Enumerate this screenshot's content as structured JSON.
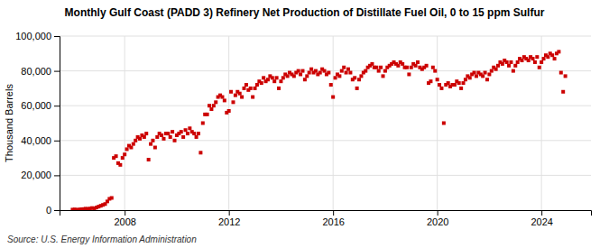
{
  "chart_data": {
    "type": "scatter",
    "title": "Monthly Gulf Coast (PADD 3) Refinery Net Production of Distillate Fuel Oil, 0 to 15 ppm Sulfur",
    "ylabel": "Thousand Barrels",
    "source": "Source: U.S. Energy Information Administration",
    "color": "#cc0000",
    "marker": "square",
    "grid": true,
    "xlim": [
      2005.5,
      2025.9
    ],
    "xticks": [
      2008,
      2012,
      2016,
      2020,
      2024
    ],
    "ylim": [
      0,
      100000
    ],
    "yticks": [
      0,
      {
        "value": 20000,
        "label": "20,000"
      },
      {
        "value": 40000,
        "label": "40,000"
      },
      {
        "value": 60000,
        "label": "60,000"
      },
      {
        "value": 80000,
        "label": "80,000"
      },
      {
        "value": 100000,
        "label": "100,000"
      }
    ],
    "x": [
      2006,
      2006.083,
      2006.167,
      2006.25,
      2006.333,
      2006.417,
      2006.5,
      2006.583,
      2006.667,
      2006.75,
      2006.833,
      2006.917,
      2007,
      2007.083,
      2007.167,
      2007.25,
      2007.333,
      2007.417,
      2007.5,
      2007.583,
      2007.667,
      2007.75,
      2007.833,
      2007.917,
      2008,
      2008.083,
      2008.167,
      2008.25,
      2008.333,
      2008.417,
      2008.5,
      2008.583,
      2008.667,
      2008.75,
      2008.833,
      2008.917,
      2009,
      2009.083,
      2009.167,
      2009.25,
      2009.333,
      2009.417,
      2009.5,
      2009.583,
      2009.667,
      2009.75,
      2009.833,
      2009.917,
      2010,
      2010.083,
      2010.167,
      2010.25,
      2010.333,
      2010.417,
      2010.5,
      2010.583,
      2010.667,
      2010.75,
      2010.833,
      2010.917,
      2011,
      2011.083,
      2011.167,
      2011.25,
      2011.333,
      2011.417,
      2011.5,
      2011.583,
      2011.667,
      2011.75,
      2011.833,
      2011.917,
      2012,
      2012.083,
      2012.167,
      2012.25,
      2012.333,
      2012.417,
      2012.5,
      2012.583,
      2012.667,
      2012.75,
      2012.833,
      2012.917,
      2013,
      2013.083,
      2013.167,
      2013.25,
      2013.333,
      2013.417,
      2013.5,
      2013.583,
      2013.667,
      2013.75,
      2013.833,
      2013.917,
      2014,
      2014.083,
      2014.167,
      2014.25,
      2014.333,
      2014.417,
      2014.5,
      2014.583,
      2014.667,
      2014.75,
      2014.833,
      2014.917,
      2015,
      2015.083,
      2015.167,
      2015.25,
      2015.333,
      2015.417,
      2015.5,
      2015.583,
      2015.667,
      2015.75,
      2015.833,
      2015.917,
      2016,
      2016.083,
      2016.167,
      2016.25,
      2016.333,
      2016.417,
      2016.5,
      2016.583,
      2016.667,
      2016.75,
      2016.833,
      2016.917,
      2017,
      2017.083,
      2017.167,
      2017.25,
      2017.333,
      2017.417,
      2017.5,
      2017.583,
      2017.667,
      2017.75,
      2017.833,
      2017.917,
      2018,
      2018.083,
      2018.167,
      2018.25,
      2018.333,
      2018.417,
      2018.5,
      2018.583,
      2018.667,
      2018.75,
      2018.833,
      2018.917,
      2019,
      2019.083,
      2019.167,
      2019.25,
      2019.333,
      2019.417,
      2019.5,
      2019.583,
      2019.667,
      2019.75,
      2019.833,
      2019.917,
      2020,
      2020.083,
      2020.167,
      2020.25,
      2020.333,
      2020.417,
      2020.5,
      2020.583,
      2020.667,
      2020.75,
      2020.833,
      2020.917,
      2021,
      2021.083,
      2021.167,
      2021.25,
      2021.333,
      2021.417,
      2021.5,
      2021.583,
      2021.667,
      2021.75,
      2021.833,
      2021.917,
      2022,
      2022.083,
      2022.167,
      2022.25,
      2022.333,
      2022.417,
      2022.5,
      2022.583,
      2022.667,
      2022.75,
      2022.833,
      2022.917,
      2023,
      2023.083,
      2023.167,
      2023.25,
      2023.333,
      2023.417,
      2023.5,
      2023.583,
      2023.667,
      2023.75,
      2023.833,
      2023.917,
      2024,
      2024.083,
      2024.167,
      2024.25,
      2024.333,
      2024.417,
      2024.5,
      2024.583,
      2024.667,
      2024.75,
      2024.833,
      2024.917
    ],
    "values": [
      300,
      400,
      200,
      350,
      500,
      600,
      800,
      700,
      900,
      1200,
      1000,
      1500,
      2000,
      2500,
      3000,
      3500,
      5000,
      6500,
      7000,
      30000,
      31000,
      27000,
      26000,
      30000,
      32000,
      35000,
      37000,
      36000,
      38000,
      40000,
      42000,
      41000,
      43000,
      42000,
      44000,
      29000,
      38000,
      40000,
      36000,
      42000,
      44000,
      43000,
      41000,
      44000,
      44000,
      42000,
      45000,
      40000,
      43000,
      44000,
      45000,
      42000,
      46000,
      44000,
      47000,
      45000,
      44000,
      42000,
      44000,
      33000,
      50000,
      55000,
      55000,
      60000,
      58000,
      60000,
      62000,
      65000,
      66000,
      65000,
      63000,
      56000,
      57000,
      68000,
      62000,
      66000,
      68000,
      67000,
      65000,
      70000,
      72000,
      69000,
      70000,
      65000,
      70000,
      72000,
      74000,
      73000,
      76000,
      74000,
      75000,
      77000,
      76000,
      74000,
      76000,
      70000,
      74000,
      76000,
      78000,
      77000,
      79000,
      78000,
      77000,
      79000,
      80000,
      78000,
      80000,
      75000,
      77000,
      79000,
      81000,
      79000,
      80000,
      78000,
      79000,
      81000,
      80000,
      78000,
      79000,
      72000,
      65000,
      76000,
      78000,
      77000,
      80000,
      82000,
      79000,
      81000,
      79000,
      75000,
      76000,
      70000,
      75000,
      77000,
      79000,
      80000,
      82000,
      83000,
      84000,
      82000,
      82000,
      80000,
      82000,
      77000,
      80000,
      82000,
      83000,
      84000,
      85000,
      84000,
      83000,
      85000,
      84000,
      82000,
      82000,
      78000,
      82000,
      84000,
      83000,
      85000,
      82000,
      81000,
      82000,
      83000,
      73000,
      74000,
      82000,
      80000,
      75000,
      72000,
      70000,
      50000,
      72000,
      73000,
      71000,
      72000,
      72000,
      74000,
      73000,
      70000,
      73000,
      75000,
      77000,
      76000,
      78000,
      79000,
      77000,
      79000,
      78000,
      77000,
      79000,
      75000,
      78000,
      80000,
      82000,
      81000,
      83000,
      85000,
      84000,
      86000,
      85000,
      83000,
      85000,
      80000,
      83000,
      85000,
      87000,
      86000,
      88000,
      87000,
      86000,
      88000,
      87000,
      85000,
      88000,
      82000,
      85000,
      87000,
      89000,
      88000,
      90000,
      89000,
      87000,
      90000,
      91000,
      79000,
      68000,
      77000
    ]
  }
}
